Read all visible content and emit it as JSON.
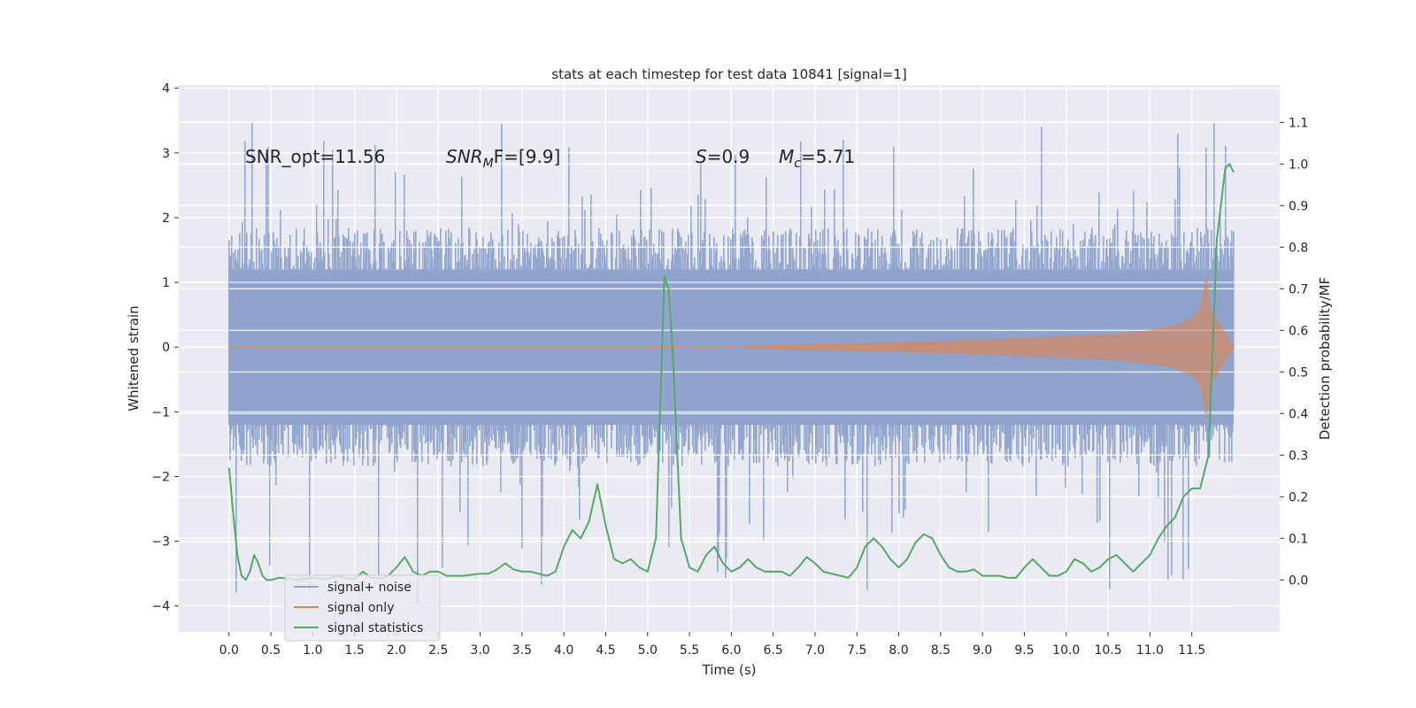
{
  "chart_data": {
    "type": "line",
    "title": "stats at each timestep for test data 10841 [signal=1]",
    "xlabel": "Time (s)",
    "ylabel": "Whitened strain",
    "y2label": "Detection probability/MF",
    "xlim": [
      -0.6,
      12.55
    ],
    "ylim": [
      -4.4,
      4.05
    ],
    "y2lim": [
      -0.125,
      1.19
    ],
    "grid": true,
    "legend_position": "lower-left",
    "x_ticks": [
      "0.0",
      "0.5",
      "1.0",
      "1.5",
      "2.0",
      "2.5",
      "3.0",
      "3.5",
      "4.0",
      "4.5",
      "5.0",
      "5.5",
      "6.0",
      "6.5",
      "7.0",
      "7.5",
      "8.0",
      "8.5",
      "9.0",
      "9.5",
      "10.0",
      "10.5",
      "11.0",
      "11.5"
    ],
    "y_ticks": [
      "4",
      "3",
      "2",
      "1",
      "0",
      "−1",
      "−2",
      "−3",
      "−4"
    ],
    "y2_ticks": [
      "1.1",
      "1.0",
      "0.9",
      "0.8",
      "0.7",
      "0.6",
      "0.5",
      "0.4",
      "0.3",
      "0.2",
      "0.1",
      "0.0"
    ],
    "annotations": {
      "snr_opt": "SNR_opt=11.56",
      "snr_mf_main": "SNR",
      "snr_mf_sub": "M",
      "snr_mf_rest": "F=[9.9]",
      "s_var": "S",
      "s_val": "=0.9",
      "mc_var": "M",
      "mc_sub": "c",
      "mc_val": "=5.71"
    },
    "colors": {
      "noise": "#8fa3cc",
      "signal": "#dd8452",
      "statistics": "#55a868",
      "background": "#eaeaf2",
      "grid": "#ffffff"
    },
    "series": [
      {
        "name": "signal+ noise",
        "t_range": [
          0.0,
          12.0
        ],
        "envelope_typical": [
          -1.6,
          1.6
        ],
        "peak_range": [
          -4.1,
          3.6
        ]
      },
      {
        "name": "signal only",
        "t_range": [
          0.0,
          12.0
        ],
        "envelope": [
          [
            0.0,
            0.005
          ],
          [
            6.0,
            0.01
          ],
          [
            7.0,
            0.05
          ],
          [
            8.0,
            0.08
          ],
          [
            9.0,
            0.12
          ],
          [
            10.0,
            0.17
          ],
          [
            10.5,
            0.2
          ],
          [
            11.0,
            0.26
          ],
          [
            11.3,
            0.33
          ],
          [
            11.5,
            0.45
          ],
          [
            11.6,
            0.6
          ],
          [
            11.68,
            1.15
          ],
          [
            11.72,
            0.6
          ],
          [
            12.0,
            0.01
          ]
        ]
      },
      {
        "name": "signal statistics",
        "points": [
          [
            0.0,
            0.27
          ],
          [
            0.05,
            0.16
          ],
          [
            0.1,
            0.06
          ],
          [
            0.15,
            0.01
          ],
          [
            0.2,
            0.0
          ],
          [
            0.25,
            0.02
          ],
          [
            0.3,
            0.06
          ],
          [
            0.35,
            0.04
          ],
          [
            0.4,
            0.01
          ],
          [
            0.45,
            0.0
          ],
          [
            0.5,
            0.0
          ],
          [
            0.6,
            0.005
          ],
          [
            0.7,
            0.003
          ],
          [
            0.8,
            0.0
          ],
          [
            0.9,
            0.002
          ],
          [
            1.0,
            0.005
          ],
          [
            1.1,
            0.002
          ],
          [
            1.2,
            0.003
          ],
          [
            1.3,
            0.01
          ],
          [
            1.4,
            0.003
          ],
          [
            1.5,
            0.002
          ],
          [
            1.6,
            0.02
          ],
          [
            1.7,
            0.005
          ],
          [
            1.8,
            0.003
          ],
          [
            1.9,
            0.01
          ],
          [
            2.0,
            0.03
          ],
          [
            2.1,
            0.055
          ],
          [
            2.2,
            0.02
          ],
          [
            2.3,
            0.01
          ],
          [
            2.4,
            0.02
          ],
          [
            2.5,
            0.02
          ],
          [
            2.6,
            0.01
          ],
          [
            2.8,
            0.01
          ],
          [
            3.0,
            0.015
          ],
          [
            3.1,
            0.015
          ],
          [
            3.2,
            0.025
          ],
          [
            3.3,
            0.04
          ],
          [
            3.4,
            0.025
          ],
          [
            3.5,
            0.02
          ],
          [
            3.6,
            0.02
          ],
          [
            3.8,
            0.01
          ],
          [
            3.9,
            0.02
          ],
          [
            4.0,
            0.08
          ],
          [
            4.1,
            0.12
          ],
          [
            4.2,
            0.1
          ],
          [
            4.3,
            0.14
          ],
          [
            4.4,
            0.23
          ],
          [
            4.5,
            0.13
          ],
          [
            4.6,
            0.05
          ],
          [
            4.7,
            0.04
          ],
          [
            4.8,
            0.05
          ],
          [
            4.9,
            0.03
          ],
          [
            5.0,
            0.02
          ],
          [
            5.1,
            0.1
          ],
          [
            5.2,
            0.73
          ],
          [
            5.25,
            0.7
          ],
          [
            5.3,
            0.55
          ],
          [
            5.4,
            0.1
          ],
          [
            5.5,
            0.03
          ],
          [
            5.6,
            0.02
          ],
          [
            5.7,
            0.06
          ],
          [
            5.8,
            0.08
          ],
          [
            5.9,
            0.04
          ],
          [
            6.0,
            0.02
          ],
          [
            6.1,
            0.03
          ],
          [
            6.2,
            0.05
          ],
          [
            6.3,
            0.03
          ],
          [
            6.4,
            0.02
          ],
          [
            6.6,
            0.02
          ],
          [
            6.7,
            0.01
          ],
          [
            6.8,
            0.03
          ],
          [
            6.9,
            0.055
          ],
          [
            7.0,
            0.04
          ],
          [
            7.1,
            0.02
          ],
          [
            7.3,
            0.01
          ],
          [
            7.4,
            0.005
          ],
          [
            7.5,
            0.03
          ],
          [
            7.6,
            0.08
          ],
          [
            7.7,
            0.1
          ],
          [
            7.8,
            0.08
          ],
          [
            7.9,
            0.05
          ],
          [
            8.0,
            0.03
          ],
          [
            8.1,
            0.05
          ],
          [
            8.2,
            0.09
          ],
          [
            8.3,
            0.11
          ],
          [
            8.4,
            0.1
          ],
          [
            8.5,
            0.06
          ],
          [
            8.6,
            0.03
          ],
          [
            8.7,
            0.02
          ],
          [
            8.8,
            0.02
          ],
          [
            8.9,
            0.025
          ],
          [
            9.0,
            0.01
          ],
          [
            9.1,
            0.01
          ],
          [
            9.2,
            0.01
          ],
          [
            9.3,
            0.005
          ],
          [
            9.4,
            0.005
          ],
          [
            9.5,
            0.03
          ],
          [
            9.6,
            0.05
          ],
          [
            9.7,
            0.03
          ],
          [
            9.8,
            0.01
          ],
          [
            9.9,
            0.01
          ],
          [
            10.0,
            0.02
          ],
          [
            10.1,
            0.05
          ],
          [
            10.2,
            0.04
          ],
          [
            10.3,
            0.02
          ],
          [
            10.4,
            0.03
          ],
          [
            10.5,
            0.05
          ],
          [
            10.6,
            0.06
          ],
          [
            10.7,
            0.04
          ],
          [
            10.8,
            0.02
          ],
          [
            10.9,
            0.04
          ],
          [
            11.0,
            0.06
          ],
          [
            11.1,
            0.1
          ],
          [
            11.2,
            0.13
          ],
          [
            11.3,
            0.15
          ],
          [
            11.4,
            0.2
          ],
          [
            11.5,
            0.22
          ],
          [
            11.6,
            0.22
          ],
          [
            11.7,
            0.3
          ],
          [
            11.8,
            0.82
          ],
          [
            11.9,
            0.99
          ],
          [
            11.95,
            1.0
          ],
          [
            12.0,
            0.98
          ]
        ]
      }
    ]
  }
}
